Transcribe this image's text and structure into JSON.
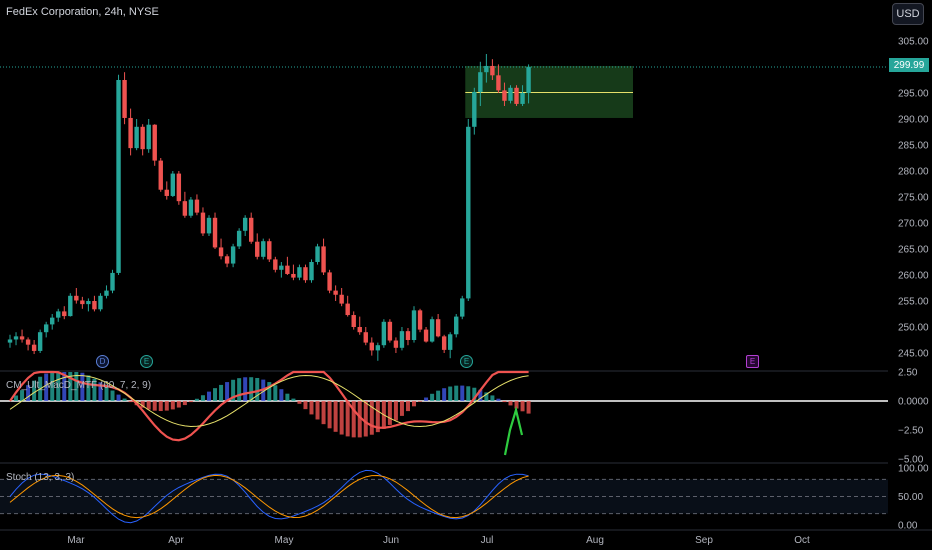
{
  "header": {
    "title": "FedEx Corporation, 24h, NYSE",
    "currency_button": "USD"
  },
  "chart_data": [
    {
      "type": "candlestick",
      "title": "FedEx Corporation, 24h, NYSE",
      "ylim": [
        242,
        307
      ],
      "y_ticks": [
        "305.00",
        "300.00",
        "295.00",
        "290.00",
        "285.00",
        "280.00",
        "275.00",
        "270.00",
        "265.00",
        "260.00",
        "255.00",
        "250.00",
        "245.00"
      ],
      "x_ticks": [
        "Mar",
        "Apr",
        "May",
        "Jun",
        "Jul",
        "Aug",
        "Sep",
        "Oct"
      ],
      "last_price": "299.99",
      "zone": {
        "top": 300.2,
        "bottom": 290.2,
        "mid": 295.1,
        "start": "Jun",
        "end": "Aug"
      },
      "candles": [
        [
          247.0,
          248.5,
          246.0,
          247.6
        ],
        [
          247.6,
          249.0,
          246.5,
          248.2
        ],
        [
          248.2,
          249.5,
          247.0,
          247.6
        ],
        [
          247.6,
          248.0,
          245.5,
          246.6
        ],
        [
          246.6,
          247.5,
          244.8,
          245.4
        ],
        [
          245.4,
          249.5,
          245.0,
          249.0
        ],
        [
          249.0,
          251.0,
          248.0,
          250.5
        ],
        [
          250.5,
          252.5,
          249.5,
          251.8
        ],
        [
          251.8,
          253.5,
          251.0,
          253.0
        ],
        [
          253.0,
          254.0,
          251.5,
          252.1
        ],
        [
          252.1,
          256.5,
          252.0,
          256.0
        ],
        [
          256.0,
          257.5,
          254.5,
          255.1
        ],
        [
          255.1,
          255.8,
          253.5,
          254.4
        ],
        [
          254.4,
          255.5,
          253.0,
          255.0
        ],
        [
          255.0,
          256.0,
          253.0,
          253.4
        ],
        [
          253.4,
          256.5,
          253.0,
          256.0
        ],
        [
          256.0,
          258.0,
          255.5,
          257.0
        ],
        [
          257.0,
          261.0,
          256.5,
          260.4
        ],
        [
          260.4,
          298.5,
          260.0,
          297.5
        ],
        [
          297.5,
          299.0,
          289.0,
          290.2
        ],
        [
          290.2,
          292.0,
          283.0,
          284.4
        ],
        [
          284.4,
          290.0,
          284.0,
          288.5
        ],
        [
          288.5,
          289.0,
          283.0,
          284.2
        ],
        [
          284.2,
          290.0,
          283.5,
          288.9
        ],
        [
          288.9,
          289.0,
          281.0,
          282.0
        ],
        [
          282.0,
          282.5,
          276.0,
          276.4
        ],
        [
          276.4,
          278.0,
          274.5,
          275.2
        ],
        [
          275.2,
          280.0,
          275.0,
          279.5
        ],
        [
          279.5,
          280.0,
          273.5,
          274.2
        ],
        [
          274.2,
          276.0,
          271.0,
          271.4
        ],
        [
          271.4,
          275.0,
          271.0,
          274.5
        ],
        [
          274.5,
          275.5,
          271.5,
          272.0
        ],
        [
          272.0,
          273.0,
          267.5,
          268.0
        ],
        [
          268.0,
          271.5,
          267.5,
          271.0
        ],
        [
          271.0,
          272.0,
          265.0,
          265.3
        ],
        [
          265.3,
          267.0,
          263.0,
          263.6
        ],
        [
          263.6,
          264.0,
          261.5,
          262.2
        ],
        [
          262.2,
          266.0,
          261.5,
          265.5
        ],
        [
          265.5,
          269.0,
          265.0,
          268.5
        ],
        [
          268.5,
          271.5,
          267.5,
          271.0
        ],
        [
          271.0,
          272.0,
          266.0,
          266.4
        ],
        [
          266.4,
          268.0,
          263.0,
          263.5
        ],
        [
          263.5,
          267.0,
          263.0,
          266.5
        ],
        [
          266.5,
          267.0,
          262.5,
          263.0
        ],
        [
          263.0,
          263.5,
          260.5,
          261.0
        ],
        [
          261.0,
          262.5,
          259.5,
          261.8
        ],
        [
          261.8,
          263.5,
          260.0,
          260.2
        ],
        [
          260.2,
          262.0,
          259.0,
          259.5
        ],
        [
          259.5,
          262.0,
          259.0,
          261.5
        ],
        [
          261.5,
          262.0,
          258.5,
          259.0
        ],
        [
          259.0,
          263.0,
          258.5,
          262.5
        ],
        [
          262.5,
          266.0,
          262.0,
          265.5
        ],
        [
          265.5,
          267.0,
          260.0,
          260.5
        ],
        [
          260.5,
          261.0,
          256.5,
          257.0
        ],
        [
          257.0,
          258.0,
          255.0,
          256.2
        ],
        [
          256.2,
          257.5,
          254.0,
          254.5
        ],
        [
          254.5,
          256.0,
          252.0,
          252.3
        ],
        [
          252.3,
          253.0,
          249.5,
          250.0
        ],
        [
          250.0,
          252.0,
          248.5,
          249.0
        ],
        [
          249.0,
          250.0,
          246.5,
          247.0
        ],
        [
          247.0,
          248.0,
          244.5,
          245.5
        ],
        [
          245.5,
          247.0,
          243.5,
          246.5
        ],
        [
          246.5,
          251.5,
          246.0,
          251.0
        ],
        [
          251.0,
          251.5,
          247.0,
          247.4
        ],
        [
          247.4,
          248.0,
          245.0,
          246.0
        ],
        [
          246.0,
          250.0,
          245.5,
          249.2
        ],
        [
          249.2,
          249.8,
          246.5,
          247.5
        ],
        [
          247.5,
          254.0,
          247.0,
          253.2
        ],
        [
          253.2,
          253.5,
          249.0,
          249.5
        ],
        [
          249.5,
          250.0,
          247.0,
          247.2
        ],
        [
          247.2,
          252.0,
          247.0,
          251.5
        ],
        [
          251.5,
          252.5,
          248.0,
          248.2
        ],
        [
          248.2,
          248.5,
          245.0,
          245.6
        ],
        [
          245.6,
          249.0,
          244.0,
          248.6
        ],
        [
          248.6,
          252.5,
          248.0,
          252.0
        ],
        [
          252.0,
          256.0,
          251.5,
          255.5
        ],
        [
          255.5,
          290.0,
          255.0,
          288.5
        ],
        [
          288.5,
          296.0,
          287.0,
          295.2
        ],
        [
          295.2,
          301.0,
          292.5,
          299.0
        ],
        [
          299.0,
          302.5,
          297.0,
          300.2
        ],
        [
          300.2,
          301.5,
          297.5,
          298.4
        ],
        [
          298.4,
          300.5,
          295.0,
          295.5
        ],
        [
          295.5,
          297.0,
          292.5,
          293.5
        ],
        [
          293.5,
          296.5,
          293.0,
          296.0
        ],
        [
          296.0,
          296.5,
          292.5,
          292.9
        ],
        [
          292.9,
          296.5,
          292.5,
          295.0
        ],
        [
          295.0,
          300.5,
          293.0,
          299.99
        ]
      ]
    },
    {
      "type": "line",
      "name": "CM_Ult_MacD_MTF (60, 7, 2, 9)",
      "ylim": [
        -5.9,
        2.5
      ],
      "y_ticks": [
        "2.50",
        "0.0000",
        "−2.50",
        "−5.00"
      ]
    },
    {
      "type": "line",
      "name": "Stoch (13, 3, 3)",
      "ylim": [
        0,
        100
      ],
      "y_ticks": [
        "100.00",
        "50.00",
        "0.00"
      ],
      "bands": [
        80,
        50,
        20
      ]
    }
  ],
  "events": [
    {
      "label": "D",
      "kind": "dividend"
    },
    {
      "label": "E",
      "kind": "earnings"
    },
    {
      "label": "E",
      "kind": "earnings"
    },
    {
      "label": "E",
      "kind": "earnings-upcoming"
    }
  ],
  "colors": {
    "up": "#26a69a",
    "down": "#ef5350",
    "zone": "#1e4d22",
    "zone_mid": "#e6e06a"
  }
}
